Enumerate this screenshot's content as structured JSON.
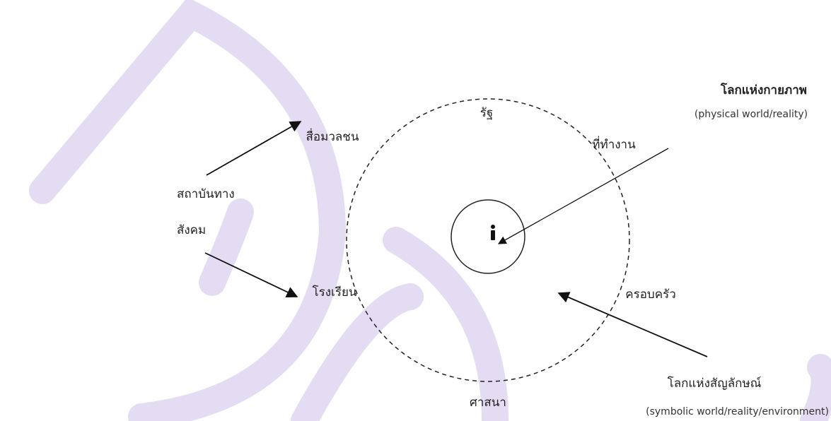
{
  "diagram": {
    "inner_ring": [
      "รัฐ",
      "สื่อมวลชน",
      "ที่ทำงาน",
      "ครอบครัว",
      "ศาสนา",
      "โรงเรียน"
    ],
    "social_institutions": [
      "สถาบันทาง",
      "สังคม"
    ],
    "physical_world": {
      "label": "โลกแห่งกายภาพ",
      "english": "(physical world/reality)"
    },
    "symbolic_world": {
      "label": "โลกแห่งสัญลักษณ์",
      "english": "(symbolic world/reality/environment)"
    }
  }
}
